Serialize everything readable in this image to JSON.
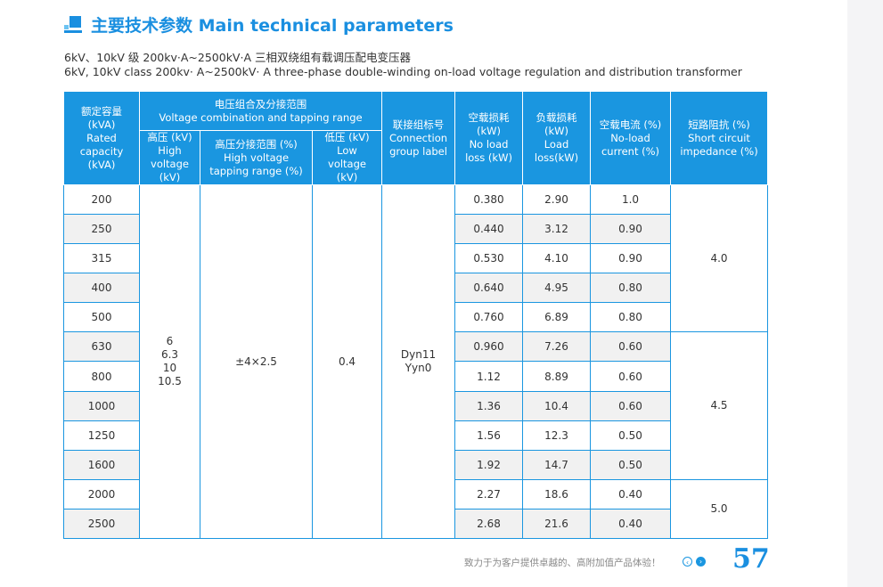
{
  "heading": {
    "title": "主要技术参数 Main technical parameters"
  },
  "subtitle": {
    "zh": "6kV、10kV 级 200kv·A~2500kV·A 三相双绕组有载调压配电变压器",
    "en": "6kV, 10kV class 200kv· A~2500kV· A three-phase double-winding on-load voltage regulation and distribution transformer"
  },
  "table": {
    "headers": {
      "rated_capacity": [
        "额定容量",
        "(kVA)",
        "Rated",
        "capacity",
        "(kVA)"
      ],
      "voltage_group": [
        "电压组合及分接范围",
        "Voltage combination and tapping range"
      ],
      "high_voltage": [
        "高压 (kV)",
        "High",
        "voltage",
        "(kV)"
      ],
      "tapping_range": [
        "高压分接范围 (%)",
        "High voltage",
        "tapping range (%)"
      ],
      "low_voltage": [
        "低压 (kV)",
        "Low",
        "voltage",
        "(kV)"
      ],
      "connection": [
        "联接组标号",
        "Connection",
        "group label"
      ],
      "no_load_loss": [
        "空载损耗",
        "(kW)",
        "No load",
        "loss (kW)"
      ],
      "load_loss": [
        "负载损耗",
        "(kW)",
        "Load",
        "loss(kW)"
      ],
      "no_load_current": [
        "空载电流 (%)",
        "No-load",
        "current (%)"
      ],
      "impedance": [
        "短路阻抗 (%)",
        "Short circuit",
        "impedance (%)"
      ]
    },
    "high_voltage_values": [
      "6",
      "6.3",
      "10",
      "10.5"
    ],
    "tapping_range_value": "±4×2.5",
    "low_voltage_value": "0.4",
    "connection_values": [
      "Dyn11",
      "Yyn0"
    ],
    "impedance_groups": [
      "4.0",
      "4.5",
      "5.0"
    ],
    "rows": [
      {
        "capacity": "200",
        "no_load_loss": "0.380",
        "load_loss": "2.90",
        "no_load_current": "1.0"
      },
      {
        "capacity": "250",
        "no_load_loss": "0.440",
        "load_loss": "3.12",
        "no_load_current": "0.90"
      },
      {
        "capacity": "315",
        "no_load_loss": "0.530",
        "load_loss": "4.10",
        "no_load_current": "0.90"
      },
      {
        "capacity": "400",
        "no_load_loss": "0.640",
        "load_loss": "4.95",
        "no_load_current": "0.80"
      },
      {
        "capacity": "500",
        "no_load_loss": "0.760",
        "load_loss": "6.89",
        "no_load_current": "0.80"
      },
      {
        "capacity": "630",
        "no_load_loss": "0.960",
        "load_loss": "7.26",
        "no_load_current": "0.60"
      },
      {
        "capacity": "800",
        "no_load_loss": "1.12",
        "load_loss": "8.89",
        "no_load_current": "0.60"
      },
      {
        "capacity": "1000",
        "no_load_loss": "1.36",
        "load_loss": "10.4",
        "no_load_current": "0.60"
      },
      {
        "capacity": "1250",
        "no_load_loss": "1.56",
        "load_loss": "12.3",
        "no_load_current": "0.50"
      },
      {
        "capacity": "1600",
        "no_load_loss": "1.92",
        "load_loss": "14.7",
        "no_load_current": "0.50"
      },
      {
        "capacity": "2000",
        "no_load_loss": "2.27",
        "load_loss": "18.6",
        "no_load_current": "0.40"
      },
      {
        "capacity": "2500",
        "no_load_loss": "2.68",
        "load_loss": "21.6",
        "no_load_current": "0.40"
      }
    ]
  },
  "footer": {
    "slogan": "致力于为客户提供卓越的、高附加值产品体验！",
    "prev_icon": "chevron-left-circle-icon",
    "next_icon": "chevron-right-circle-icon",
    "prev_glyph": "‹",
    "next_glyph": "›",
    "page_number": "57"
  },
  "colors": {
    "accent": "#1a96e0",
    "zebra": "#f1f1f1"
  }
}
